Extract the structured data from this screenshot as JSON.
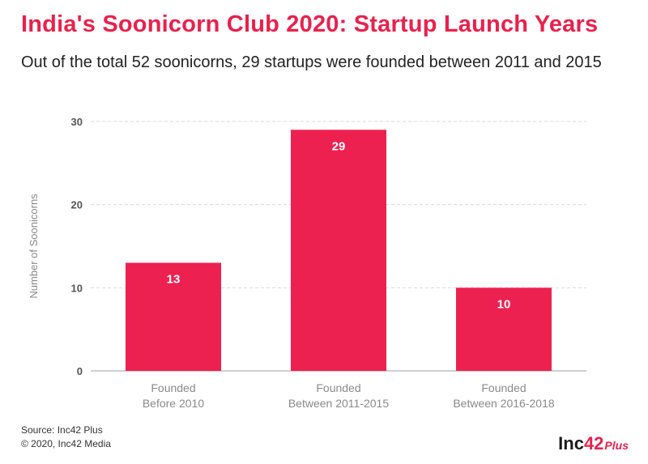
{
  "header": {
    "title": "India's Soonicorn Club 2020: Startup Launch Years",
    "subtitle": "Out of the total 52 soonicorns, 29 startups were founded between 2011 and 2015"
  },
  "chart_data": {
    "type": "bar",
    "title": "India's Soonicorn Club 2020: Startup Launch Years",
    "subtitle": "Out of the total 52 soonicorns, 29 startups were founded between 2011 and 2015",
    "categories": [
      [
        "Founded",
        "Before 2010"
      ],
      [
        "Founded",
        "Between 2011-2015"
      ],
      [
        "Founded",
        "Between 2016-2018"
      ]
    ],
    "values": [
      13,
      29,
      10
    ],
    "value_labels": [
      "13",
      "29",
      "10"
    ],
    "xlabel": "",
    "ylabel": "Number of Soonicorns",
    "ylim": [
      0,
      30
    ],
    "yticks": [
      0,
      10,
      20,
      30
    ],
    "grid": true,
    "bar_color": "#ed2150",
    "label_color": "#ffffff"
  },
  "footer": {
    "source": "Source: Inc42 Plus",
    "copyright": "© 2020, Inc42 Media"
  },
  "logo": {
    "text_main": "Inc",
    "text_accent": "42",
    "text_plus": "Plus",
    "accent_color": "#e8214d"
  }
}
